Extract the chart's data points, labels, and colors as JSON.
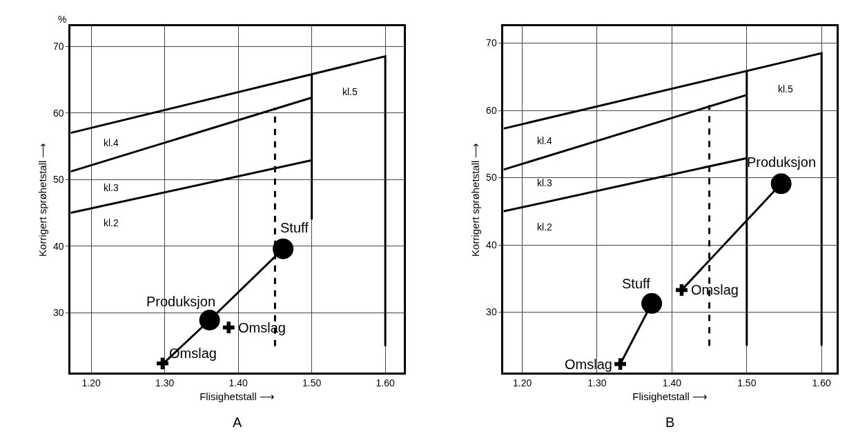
{
  "chart_data": [
    {
      "type": "line",
      "title": "A",
      "xlabel": "Flisighetstall ⟶",
      "ylabel": "Korrigert sprøhetstall ⟶",
      "xlim": [
        1.172,
        1.625
      ],
      "ylim": [
        21,
        73
      ],
      "xticks": [
        {
          "value": 1.2,
          "label": "1.20"
        },
        {
          "value": 1.3,
          "label": "1.30"
        },
        {
          "value": 1.4,
          "label": "1.40"
        },
        {
          "value": 1.5,
          "label": "1.50"
        },
        {
          "value": 1.6,
          "label": "1.60"
        }
      ],
      "yticks": [
        30,
        40,
        50,
        60,
        70
      ],
      "grid": true,
      "series": [
        {
          "color": "#000000",
          "x": [
            1.172,
            1.6,
            1.6
          ],
          "values": [
            57.0,
            68.5,
            25
          ]
        },
        {
          "color": "#000000",
          "x": [
            1.172,
            1.5
          ],
          "values": [
            51.2,
            62.3
          ]
        },
        {
          "color": "#000000",
          "x": [
            1.172,
            1.5
          ],
          "values": [
            45.0,
            52.9
          ]
        },
        {
          "color": "#000000",
          "x": [
            1.5,
            1.5
          ],
          "values": [
            44,
            65.8
          ]
        },
        {
          "color": "#000000",
          "line_style": "dashed",
          "x": [
            1.45,
            1.45
          ],
          "values": [
            25,
            60.8
          ]
        },
        {
          "color": "#000000",
          "x": [
            1.3,
            1.361,
            1.461
          ],
          "values": [
            22.6,
            28.9,
            39.6
          ]
        },
        {
          "type": "scatter",
          "color": "#000000",
          "marker": "circle",
          "x": [
            1.361,
            1.461
          ],
          "values": [
            28.9,
            39.6
          ]
        },
        {
          "type": "scatter",
          "color": "#000000",
          "marker": "cross",
          "x": [
            1.297,
            1.387
          ],
          "values": [
            22.4,
            27.8
          ]
        }
      ],
      "annotations": [
        "%",
        "kl.4",
        "kl.3",
        "kl.2",
        "kl.5",
        {
          "text": "Produksjon",
          "x": 1.361,
          "y": 28.9
        },
        {
          "text": "Stuff",
          "x": 1.461,
          "y": 39.6
        },
        {
          "text": "Omslag",
          "x": 1.297,
          "y": 22.4
        },
        {
          "text": "Omslag",
          "x": 1.387,
          "y": 27.8
        }
      ]
    },
    {
      "type": "line",
      "title": "B",
      "xlabel": "Flisighetstall ⟶",
      "ylabel": "Korrigert sprøhetstall ⟶",
      "xlim": [
        1.175,
        1.62
      ],
      "ylim": [
        21,
        72.5
      ],
      "xticks": [
        {
          "value": 1.2,
          "label": "1.20"
        },
        {
          "value": 1.3,
          "label": "1.30"
        },
        {
          "value": 1.4,
          "label": "1.40"
        },
        {
          "value": 1.5,
          "label": "1.50"
        },
        {
          "value": 1.6,
          "label": "1.60"
        }
      ],
      "yticks": [
        30,
        40,
        50,
        60,
        70
      ],
      "grid": true,
      "series": [
        {
          "color": "#000000",
          "x": [
            1.175,
            1.6,
            1.6
          ],
          "values": [
            57.3,
            68.5,
            25
          ]
        },
        {
          "color": "#000000",
          "x": [
            1.175,
            1.5
          ],
          "values": [
            51.2,
            62.3
          ]
        },
        {
          "color": "#000000",
          "x": [
            1.175,
            1.5
          ],
          "values": [
            45.0,
            52.9
          ]
        },
        {
          "color": "#000000",
          "x": [
            1.5,
            1.5
          ],
          "values": [
            25,
            65.8
          ]
        },
        {
          "color": "#000000",
          "line_style": "dashed",
          "x": [
            1.45,
            1.45
          ],
          "values": [
            25,
            60.8
          ]
        },
        {
          "color": "#000000",
          "x": [
            1.331,
            1.373
          ],
          "values": [
            22.3,
            31.3
          ]
        },
        {
          "color": "#000000",
          "x": [
            1.413,
            1.546
          ],
          "values": [
            33.3,
            49.1
          ]
        },
        {
          "type": "scatter",
          "color": "#000000",
          "marker": "circle",
          "x": [
            1.373,
            1.546
          ],
          "values": [
            31.3,
            49.1
          ]
        },
        {
          "type": "scatter",
          "color": "#000000",
          "marker": "cross",
          "x": [
            1.331,
            1.413
          ],
          "values": [
            22.3,
            33.3
          ]
        }
      ],
      "annotations": [
        "kl.4",
        "kl.3",
        "kl.2",
        "kl.5",
        {
          "text": "Stuff",
          "x": 1.373,
          "y": 31.3
        },
        {
          "text": "Produksjon",
          "x": 1.546,
          "y": 49.1
        },
        {
          "text": "Omslag",
          "x": 1.331,
          "y": 22.3
        },
        {
          "text": "Omslag",
          "x": 1.413,
          "y": 33.3
        }
      ]
    }
  ]
}
